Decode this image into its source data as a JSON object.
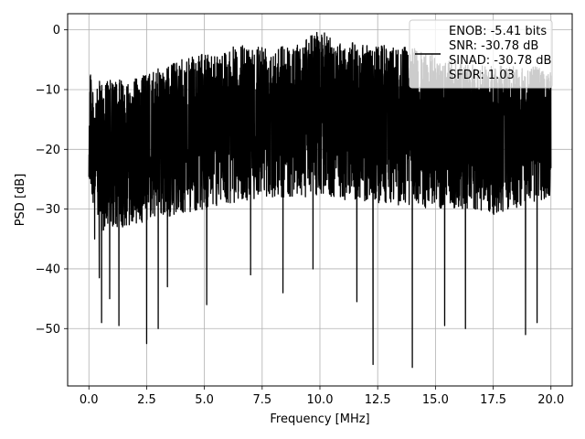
{
  "chart_data": {
    "type": "line",
    "title": "",
    "xlabel": "Frequency [MHz]",
    "ylabel": "PSD [dB]",
    "xlim": [
      -0.92,
      20.92
    ],
    "ylim": [
      -59.6,
      2.7
    ],
    "xticks": [
      0.0,
      2.5,
      5.0,
      7.5,
      10.0,
      12.5,
      15.0,
      17.5,
      20.0
    ],
    "xtick_labels": [
      "0.0",
      "2.5",
      "5.0",
      "7.5",
      "10.0",
      "12.5",
      "15.0",
      "17.5",
      "20.0"
    ],
    "yticks": [
      0,
      -10,
      -20,
      -30,
      -40,
      -50
    ],
    "ytick_labels": [
      "0",
      "−10",
      "−20",
      "−30",
      "−40",
      "−50"
    ],
    "grid": true,
    "legend_position": "top-right",
    "line_color": "#000000",
    "series": [
      {
        "name": "ENOB: -5.41 bits\nSNR: -30.78 dB\nSINAD: -30.78 dB\nSFDR: 1.03",
        "style": "noisy spectrum (approximate envelope)",
        "x_range": [
          0.0,
          20.0
        ],
        "envelope_upper": [
          [
            0.0,
            -16
          ],
          [
            0.05,
            -3.5
          ],
          [
            0.2,
            -12
          ],
          [
            0.5,
            -8
          ],
          [
            1.0,
            -8.5
          ],
          [
            2.0,
            -8
          ],
          [
            3.0,
            -6.5
          ],
          [
            4.0,
            -5
          ],
          [
            5.0,
            -4
          ],
          [
            6.0,
            -3
          ],
          [
            7.5,
            -2
          ],
          [
            9.0,
            -2.5
          ],
          [
            9.9,
            0.1
          ],
          [
            11.0,
            -2
          ],
          [
            12.5,
            -2.5
          ],
          [
            14.0,
            -3
          ],
          [
            15.5,
            -5
          ],
          [
            17.0,
            -6
          ],
          [
            18.5,
            -6
          ],
          [
            20.0,
            -6
          ]
        ],
        "envelope_median": [
          [
            0.0,
            -16
          ],
          [
            0.5,
            -20
          ],
          [
            2.0,
            -18
          ],
          [
            5.0,
            -16
          ],
          [
            7.5,
            -14
          ],
          [
            10.0,
            -14
          ],
          [
            12.5,
            -15
          ],
          [
            15.0,
            -16
          ],
          [
            17.5,
            -17
          ],
          [
            20.0,
            -18
          ]
        ],
        "envelope_lower_typical": [
          [
            0.0,
            -26
          ],
          [
            0.5,
            -34
          ],
          [
            2.5,
            -32
          ],
          [
            5.0,
            -30
          ],
          [
            7.5,
            -28
          ],
          [
            10.0,
            -28
          ],
          [
            12.5,
            -29
          ],
          [
            15.0,
            -30
          ],
          [
            17.5,
            -31
          ],
          [
            20.0,
            -28
          ]
        ],
        "deep_dips": [
          [
            0.25,
            -35
          ],
          [
            0.45,
            -41.5
          ],
          [
            0.55,
            -49
          ],
          [
            0.9,
            -45
          ],
          [
            1.3,
            -49.5
          ],
          [
            2.5,
            -52.5
          ],
          [
            3.0,
            -50
          ],
          [
            3.4,
            -43
          ],
          [
            5.1,
            -46
          ],
          [
            7.0,
            -41
          ],
          [
            8.4,
            -44
          ],
          [
            9.7,
            -40
          ],
          [
            11.6,
            -45.5
          ],
          [
            12.3,
            -56
          ],
          [
            14.0,
            -56.5
          ],
          [
            15.4,
            -49.5
          ],
          [
            16.3,
            -50
          ],
          [
            19.4,
            -49
          ],
          [
            18.9,
            -51
          ]
        ]
      }
    ]
  }
}
